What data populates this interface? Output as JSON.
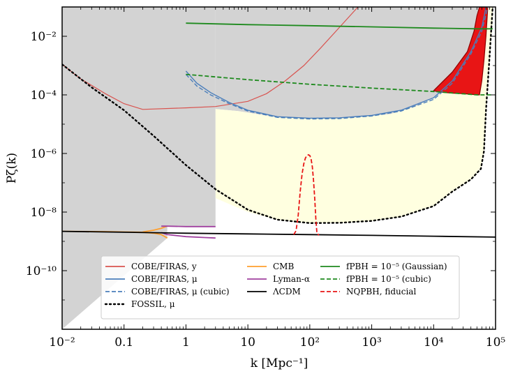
{
  "chart_data": {
    "type": "line",
    "xlabel": "k [Mpc⁻¹]",
    "ylabel": "Pζ(k)",
    "xscale": "log",
    "yscale": "log",
    "xlim": [
      0.01,
      100000
    ],
    "ylim": [
      1e-12,
      0.1
    ],
    "grid": false,
    "legend_position": "lower center",
    "x_ticks": [
      {
        "value": 0.01,
        "label": "10⁻²"
      },
      {
        "value": 0.1,
        "label": "0.1"
      },
      {
        "value": 1,
        "label": "1"
      },
      {
        "value": 10,
        "label": "10"
      },
      {
        "value": 100,
        "label": "10²"
      },
      {
        "value": 1000,
        "label": "10³"
      },
      {
        "value": 10000,
        "label": "10⁴"
      },
      {
        "value": 100000,
        "label": "10⁵"
      }
    ],
    "y_ticks": [
      {
        "value": 0.01,
        "label": "10⁻²"
      },
      {
        "value": 0.0001,
        "label": "10⁻⁴"
      },
      {
        "value": 1e-06,
        "label": "10⁻⁶"
      },
      {
        "value": 1e-08,
        "label": "10⁻⁸"
      },
      {
        "value": 1e-10,
        "label": "10⁻¹⁰"
      }
    ],
    "regions": [
      {
        "name": "excluded",
        "color": "#d3d3d3",
        "x": [
          0.01,
          0.01,
          3.0,
          3.0,
          0.5,
          0.5,
          0.01
        ],
        "y": [
          1e-12,
          0.1,
          0.1,
          3.2e-09,
          3.2e-09,
          1.3e-09,
          1e-12
        ]
      },
      {
        "name": "excluded-upper",
        "color": "#d3d3d3",
        "x": [
          3.0,
          3.0,
          7.0,
          30,
          100,
          500,
          2000,
          5000,
          10000,
          20000,
          40000,
          50000,
          55000,
          58000,
          58000
        ],
        "y": [
          0.1,
          3.3e-05,
          2.8e-05,
          1.7e-05,
          1.65e-05,
          1.7e-05,
          2.2e-05,
          4e-05,
          8e-05,
          0.0002,
          0.001,
          0.004,
          0.015,
          0.05,
          0.1
        ]
      },
      {
        "name": "fossil-band",
        "color": "#ffffe0",
        "x": [
          3.0,
          10,
          30,
          100,
          300,
          1000,
          3000,
          10000,
          20000,
          40000,
          58000,
          65000,
          70000,
          80000,
          90000,
          90000,
          58000,
          55000,
          50000,
          40000,
          20000,
          10000,
          5000,
          2000,
          500,
          100,
          30,
          7,
          3.0
        ],
        "y": [
          3e-08,
          1e-08,
          5.5e-09,
          4.2e-09,
          4.3e-09,
          5e-09,
          7e-09,
          1.6e-08,
          5e-08,
          1.3e-07,
          3e-07,
          1.2e-06,
          3e-05,
          0.002,
          0.03,
          0.1,
          0.1,
          0.015,
          0.004,
          0.001,
          0.0002,
          8e-05,
          4e-05,
          2.2e-05,
          1.7e-05,
          1.65e-05,
          1.7e-05,
          2.8e-05,
          3.3e-05
        ]
      }
    ],
    "series": [
      {
        "name": "COBE/FIRAS, y",
        "color": "#d9534f",
        "style": "solid",
        "width": 1.2,
        "x": [
          0.01,
          0.02,
          0.05,
          0.1,
          0.2,
          1,
          3,
          10,
          20,
          40,
          80,
          150,
          300,
          600
        ],
        "y": [
          0.0011,
          0.00035,
          0.00011,
          5e-05,
          3.2e-05,
          3.6e-05,
          4e-05,
          6e-05,
          0.00011,
          0.0003,
          0.001,
          0.004,
          0.02,
          0.1
        ]
      },
      {
        "name": "COBE/FIRAS, μ",
        "color": "#4a7ebb",
        "style": "solid",
        "width": 1.4,
        "x": [
          1,
          1.5,
          2.5,
          5,
          10,
          30,
          100,
          300,
          1000,
          3000,
          10000,
          20000,
          40000,
          60000,
          70000
        ],
        "y": [
          0.00065,
          0.00025,
          0.00012,
          5.5e-05,
          3e-05,
          1.8e-05,
          1.6e-05,
          1.65e-05,
          2e-05,
          3e-05,
          8e-05,
          0.0003,
          0.003,
          0.02,
          0.1
        ]
      },
      {
        "name": "COBE/FIRAS, μ (cubic)",
        "color": "#4a7ebb",
        "style": "dashed",
        "width": 1.4,
        "x": [
          1,
          1.5,
          2.5,
          5,
          10,
          30,
          100,
          300,
          1000,
          3000,
          10000,
          20000,
          40000,
          60000,
          75000
        ],
        "y": [
          0.0005,
          0.0002,
          0.0001,
          5e-05,
          2.8e-05,
          1.7e-05,
          1.5e-05,
          1.55e-05,
          1.9e-05,
          2.8e-05,
          7e-05,
          0.00025,
          0.0025,
          0.015,
          0.1
        ]
      },
      {
        "name": "FOSSIL, μ",
        "color": "#000000",
        "style": "dotted",
        "width": 2.4,
        "x": [
          0.01,
          0.03,
          0.1,
          0.3,
          1,
          3,
          10,
          30,
          100,
          300,
          1000,
          3000,
          10000,
          20000,
          40000,
          58000,
          65000,
          70000,
          80000,
          90000
        ],
        "y": [
          0.0011,
          0.00018,
          3e-05,
          4e-06,
          4e-07,
          6e-08,
          1.2e-08,
          5.5e-09,
          4.2e-09,
          4.3e-09,
          5e-09,
          7e-09,
          1.6e-08,
          5e-08,
          1.3e-07,
          3e-07,
          1.2e-06,
          3e-05,
          0.002,
          0.1
        ]
      },
      {
        "name": "CMB",
        "color": "#ff9f2e",
        "style": "solid",
        "width": 1.8,
        "x": [
          0.01,
          0.05,
          0.1,
          0.2,
          0.3,
          0.4,
          0.5
        ],
        "y": [
          2.2e-09,
          2.15e-09,
          2.1e-09,
          2.05e-09,
          1.9e-09,
          1.7e-09,
          1.3e-09
        ]
      },
      {
        "name": "CMB-upper",
        "color": "#ff9f2e",
        "style": "solid",
        "width": 1.8,
        "x": [
          0.2,
          0.3,
          0.4,
          0.5
        ],
        "y": [
          2.1e-09,
          2.4e-09,
          2.8e-09,
          3.3e-09
        ]
      },
      {
        "name": "Lyman-α",
        "color": "#a0409f",
        "style": "solid",
        "width": 1.8,
        "x": [
          0.4,
          0.5,
          1,
          2,
          3
        ],
        "y": [
          3.3e-09,
          3.3e-09,
          3.2e-09,
          3.2e-09,
          3.2e-09
        ]
      },
      {
        "name": "Lyman-α-lower",
        "color": "#a0409f",
        "style": "solid",
        "width": 1.8,
        "x": [
          0.4,
          0.5,
          1,
          2,
          3
        ],
        "y": [
          2e-09,
          1.7e-09,
          1.45e-09,
          1.35e-09,
          1.3e-09
        ]
      },
      {
        "name": "ΛCDM",
        "color": "#000000",
        "style": "solid",
        "width": 1.8,
        "x": [
          0.01,
          0.1,
          1,
          10,
          100,
          1000,
          10000,
          100000
        ],
        "y": [
          2.2e-09,
          2.05e-09,
          1.9e-09,
          1.8e-09,
          1.7e-09,
          1.6e-09,
          1.5e-09,
          1.4e-09
        ]
      },
      {
        "name": "fPBH = 10⁻⁵ (Gaussian)",
        "color": "#1e8a1e",
        "style": "solid",
        "width": 1.8,
        "x": [
          1,
          10,
          100,
          1000,
          10000,
          50000,
          90000
        ],
        "y": [
          0.028,
          0.025,
          0.023,
          0.021,
          0.019,
          0.018,
          0.018
        ]
      },
      {
        "name": "fPBH = 10⁻⁵ (cubic)",
        "color": "#1e8a1e",
        "style": "dashed",
        "width": 1.8,
        "x": [
          1,
          10,
          100,
          1000,
          10000,
          50000,
          90000
        ],
        "y": [
          0.0005,
          0.00033,
          0.00023,
          0.00017,
          0.00013,
          0.0001,
          0.0001
        ]
      },
      {
        "name": "NQPBH, fiducial",
        "color": "#e81515",
        "style": "dashed",
        "width": 1.8,
        "x": [
          55,
          60,
          65,
          70,
          75,
          80,
          85,
          90,
          95,
          100,
          105,
          110,
          115,
          120,
          125,
          130,
          140
        ],
        "y": [
          1.7e-09,
          2.3e-09,
          8e-09,
          5e-08,
          2e-07,
          4.5e-07,
          7e-07,
          8.5e-07,
          9e-07,
          8.5e-07,
          6.5e-07,
          3.5e-07,
          1.2e-07,
          3e-08,
          6e-09,
          2e-09,
          1.6e-09
        ]
      }
    ],
    "nqpbh_constraint": {
      "color": "#e81515",
      "outline": "#8b0000",
      "x": [
        10000,
        20000,
        35000,
        45000,
        50000,
        55000,
        58000,
        60000,
        65000,
        70000,
        75000,
        70000,
        65000,
        60000,
        55000,
        50000,
        40000,
        30000,
        20000,
        12000,
        10000
      ],
      "y": [
        0.00014,
        0.0006,
        0.003,
        0.015,
        0.05,
        0.1,
        0.1,
        0.1,
        0.1,
        0.1,
        0.1,
        0.01,
        0.0015,
        0.0003,
        0.0001,
        0.0001,
        0.000105,
        0.00011,
        0.000115,
        0.000125,
        0.00014
      ]
    },
    "legend": [
      {
        "label": "COBE/FIRAS, y",
        "color": "#d9534f",
        "style": "solid"
      },
      {
        "label": "COBE/FIRAS, μ",
        "color": "#4a7ebb",
        "style": "solid"
      },
      {
        "label": "COBE/FIRAS, μ (cubic)",
        "color": "#4a7ebb",
        "style": "dashed"
      },
      {
        "label": "FOSSIL, μ",
        "color": "#000000",
        "style": "dotted"
      },
      {
        "label": "CMB",
        "color": "#ff9f2e",
        "style": "solid"
      },
      {
        "label": "Lyman-α",
        "color": "#a0409f",
        "style": "solid"
      },
      {
        "label": "ΛCDM",
        "color": "#000000",
        "style": "solid"
      },
      {
        "label": "fPBH = 10⁻⁵ (Gaussian)",
        "color": "#1e8a1e",
        "style": "solid"
      },
      {
        "label": "fPBH = 10⁻⁵ (cubic)",
        "color": "#1e8a1e",
        "style": "dashed"
      },
      {
        "label": "NQPBH, fiducial",
        "color": "#e81515",
        "style": "dashed"
      }
    ]
  }
}
